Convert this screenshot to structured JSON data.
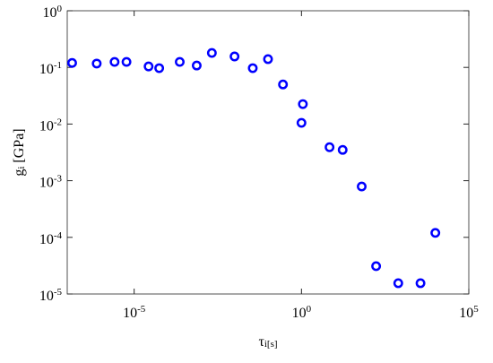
{
  "chart_data": {
    "type": "scatter",
    "xlabel": "τ_i[s]",
    "ylabel": "g_i [GPa]",
    "xscale": "log",
    "yscale": "log",
    "xlim": [
      1e-07,
      100000.0
    ],
    "ylim": [
      1e-05,
      1
    ],
    "xticks": [
      {
        "value": 1e-05,
        "label": "10^-5"
      },
      {
        "value": 1,
        "label": "10^0"
      },
      {
        "value": 100000.0,
        "label": "10^5"
      }
    ],
    "yticks": [
      {
        "value": 1e-05,
        "label": "10^-5"
      },
      {
        "value": 0.0001,
        "label": "10^-4"
      },
      {
        "value": 0.001,
        "label": "10^-3"
      },
      {
        "value": 0.01,
        "label": "10^-2"
      },
      {
        "value": 0.1,
        "label": "10^-1"
      },
      {
        "value": 1,
        "label": "10^0"
      }
    ],
    "series": [
      {
        "color": "#0000ff",
        "x": [
          1.4e-07,
          7.6e-07,
          2.6e-06,
          5.9e-06,
          2.7e-05,
          5.6e-05,
          0.00023,
          0.00074,
          0.0021,
          0.01,
          0.035,
          0.1,
          0.28,
          1.1,
          1.0,
          6.9,
          17,
          63,
          170,
          780,
          3600,
          10000
        ],
        "values": [
          0.12,
          0.117,
          0.125,
          0.125,
          0.104,
          0.097,
          0.125,
          0.108,
          0.18,
          0.156,
          0.097,
          0.14,
          0.05,
          0.0225,
          0.0105,
          0.0039,
          0.0035,
          0.00079,
          3.1e-05,
          1.55e-05,
          1.55e-05,
          0.00012
        ]
      }
    ]
  }
}
